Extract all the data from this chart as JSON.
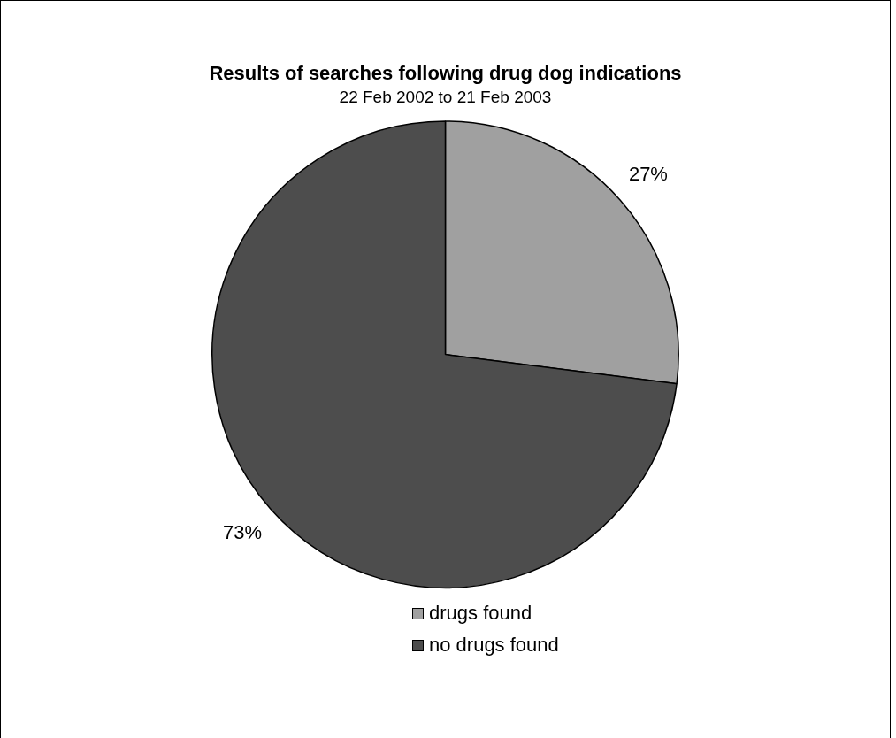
{
  "chart_data": {
    "type": "pie",
    "title": "Results of searches following drug dog indications",
    "subtitle": "22 Feb 2002 to 21 Feb 2003",
    "categories": [
      "drugs found",
      "no drugs found"
    ],
    "values": [
      27,
      73
    ],
    "value_labels": [
      "27%",
      "73%"
    ],
    "colors": [
      "#a0a0a0",
      "#4d4d4d"
    ],
    "legend": "bottom"
  }
}
